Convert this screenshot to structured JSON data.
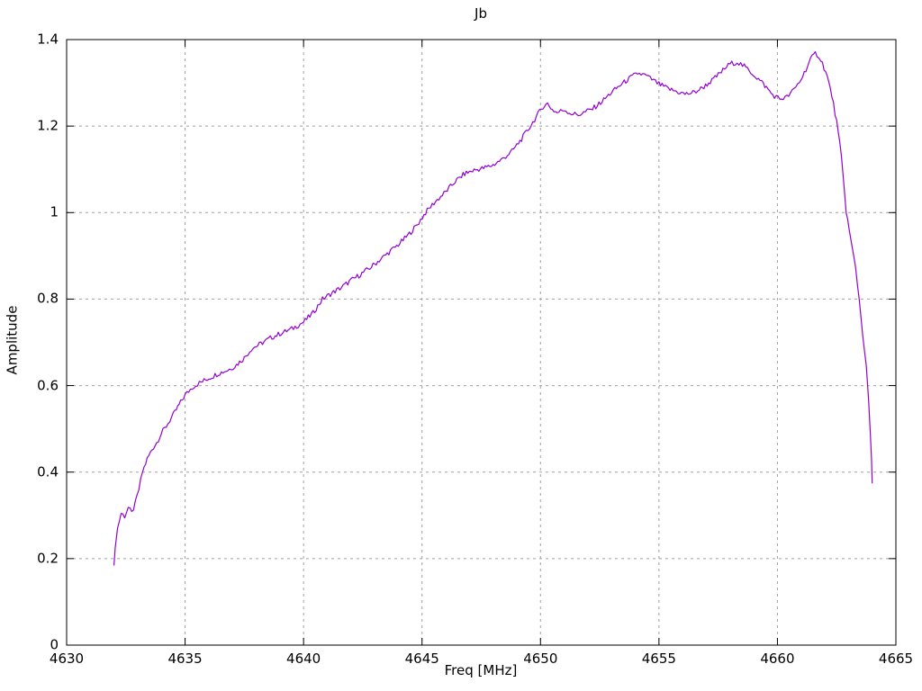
{
  "window": {
    "background": "#ffffff",
    "foreground": "#000000"
  },
  "chart_data": {
    "type": "line",
    "title": "Jb",
    "xlabel": "Freq [MHz]",
    "ylabel": "Amplitude",
    "xlim": [
      4630,
      4665
    ],
    "ylim": [
      0,
      1.4
    ],
    "xticks": [
      4630,
      4635,
      4640,
      4645,
      4650,
      4655,
      4660,
      4665
    ],
    "xtick_labels": [
      "4630",
      "4635",
      "4640",
      "4645",
      "4650",
      "4655",
      "4660",
      "4665"
    ],
    "yticks": [
      0,
      0.2,
      0.4,
      0.6,
      0.8,
      1,
      1.2,
      1.4
    ],
    "ytick_labels": [
      "0",
      "0.2",
      "0.4",
      "0.6",
      "0.8",
      "1",
      "1.2",
      "1.4"
    ],
    "grid": true,
    "grid_style": "dashed",
    "grid_color": "#a0a0a0",
    "border_color": "#000000",
    "legend_position": "none",
    "line_color": "#9400D3",
    "line_width": 1.2,
    "noise_amplitude": 0.006,
    "series": [
      {
        "name": "Jb",
        "points": [
          [
            4632.0,
            0.185
          ],
          [
            4632.05,
            0.23
          ],
          [
            4632.15,
            0.27
          ],
          [
            4632.3,
            0.305
          ],
          [
            4632.45,
            0.298
          ],
          [
            4632.6,
            0.318
          ],
          [
            4632.75,
            0.305
          ],
          [
            4632.9,
            0.328
          ],
          [
            4633.05,
            0.36
          ],
          [
            4633.2,
            0.4
          ],
          [
            4633.4,
            0.43
          ],
          [
            4633.6,
            0.452
          ],
          [
            4633.8,
            0.468
          ],
          [
            4634.0,
            0.49
          ],
          [
            4634.2,
            0.506
          ],
          [
            4634.5,
            0.532
          ],
          [
            4634.75,
            0.556
          ],
          [
            4635.0,
            0.578
          ],
          [
            4635.3,
            0.596
          ],
          [
            4635.6,
            0.606
          ],
          [
            4636.0,
            0.617
          ],
          [
            4636.4,
            0.628
          ],
          [
            4636.8,
            0.636
          ],
          [
            4637.1,
            0.645
          ],
          [
            4637.5,
            0.664
          ],
          [
            4637.8,
            0.685
          ],
          [
            4638.2,
            0.697
          ],
          [
            4638.6,
            0.71
          ],
          [
            4639.0,
            0.72
          ],
          [
            4639.5,
            0.731
          ],
          [
            4640.0,
            0.747
          ],
          [
            4640.4,
            0.768
          ],
          [
            4640.8,
            0.8
          ],
          [
            4641.2,
            0.814
          ],
          [
            4641.6,
            0.827
          ],
          [
            4642.0,
            0.843
          ],
          [
            4642.4,
            0.857
          ],
          [
            4642.8,
            0.872
          ],
          [
            4643.2,
            0.89
          ],
          [
            4643.6,
            0.908
          ],
          [
            4644.0,
            0.926
          ],
          [
            4644.4,
            0.947
          ],
          [
            4644.8,
            0.972
          ],
          [
            4645.15,
            1.0
          ],
          [
            4645.5,
            1.022
          ],
          [
            4646.0,
            1.048
          ],
          [
            4646.4,
            1.072
          ],
          [
            4646.8,
            1.09
          ],
          [
            4647.2,
            1.098
          ],
          [
            4647.6,
            1.103
          ],
          [
            4648.0,
            1.11
          ],
          [
            4648.4,
            1.124
          ],
          [
            4648.8,
            1.142
          ],
          [
            4649.2,
            1.17
          ],
          [
            4649.6,
            1.202
          ],
          [
            4649.9,
            1.228
          ],
          [
            4650.1,
            1.245
          ],
          [
            4650.3,
            1.252
          ],
          [
            4650.5,
            1.238
          ],
          [
            4650.7,
            1.231
          ],
          [
            4651.0,
            1.238
          ],
          [
            4651.3,
            1.229
          ],
          [
            4651.6,
            1.226
          ],
          [
            4651.9,
            1.233
          ],
          [
            4652.2,
            1.24
          ],
          [
            4652.6,
            1.257
          ],
          [
            4653.0,
            1.278
          ],
          [
            4653.4,
            1.296
          ],
          [
            4653.8,
            1.312
          ],
          [
            4654.1,
            1.322
          ],
          [
            4654.4,
            1.318
          ],
          [
            4654.7,
            1.308
          ],
          [
            4655.0,
            1.297
          ],
          [
            4655.4,
            1.286
          ],
          [
            4655.8,
            1.279
          ],
          [
            4656.1,
            1.274
          ],
          [
            4656.5,
            1.278
          ],
          [
            4656.9,
            1.291
          ],
          [
            4657.3,
            1.308
          ],
          [
            4657.7,
            1.329
          ],
          [
            4658.0,
            1.344
          ],
          [
            4658.3,
            1.348
          ],
          [
            4658.6,
            1.338
          ],
          [
            4659.0,
            1.319
          ],
          [
            4659.4,
            1.298
          ],
          [
            4659.8,
            1.272
          ],
          [
            4660.1,
            1.263
          ],
          [
            4660.4,
            1.267
          ],
          [
            4660.7,
            1.284
          ],
          [
            4661.0,
            1.308
          ],
          [
            4661.2,
            1.331
          ],
          [
            4661.4,
            1.354
          ],
          [
            4661.6,
            1.368
          ],
          [
            4661.75,
            1.362
          ],
          [
            4661.9,
            1.345
          ],
          [
            4662.1,
            1.315
          ],
          [
            4662.3,
            1.27
          ],
          [
            4662.5,
            1.21
          ],
          [
            4662.7,
            1.13
          ],
          [
            4662.9,
            1.005
          ],
          [
            4663.1,
            0.935
          ],
          [
            4663.3,
            0.873
          ],
          [
            4663.45,
            0.8
          ],
          [
            4663.6,
            0.72
          ],
          [
            4663.75,
            0.645
          ],
          [
            4663.85,
            0.565
          ],
          [
            4663.92,
            0.49
          ],
          [
            4663.97,
            0.43
          ],
          [
            4664.0,
            0.375
          ]
        ]
      }
    ]
  }
}
